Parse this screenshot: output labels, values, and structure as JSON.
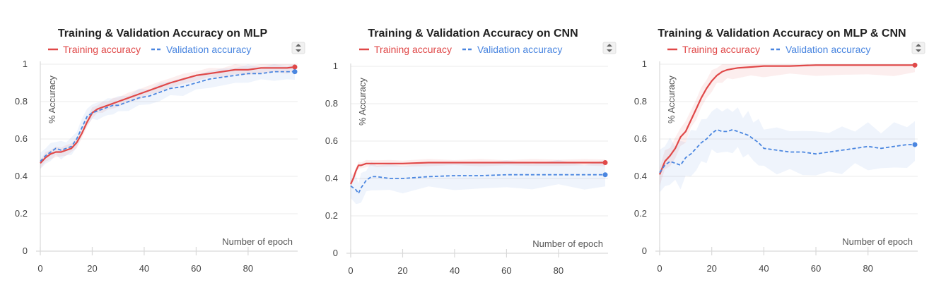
{
  "colors": {
    "training": "#e04848",
    "validation": "#4a86e0"
  },
  "chart_data": [
    {
      "type": "line",
      "title": "Training & Validation Accuracy on MLP",
      "xlabel": "Number of epoch",
      "ylabel": "% Accuracy",
      "xlim": [
        0,
        98
      ],
      "ylim": [
        0,
        1
      ],
      "x_ticks": [
        "0",
        "20",
        "40",
        "60",
        "80"
      ],
      "y_ticks": [
        "0",
        "0.2",
        "0.4",
        "0.6",
        "0.8",
        "1"
      ],
      "series": [
        {
          "name": "Training accuracy",
          "style": "solid",
          "x": [
            0,
            2,
            4,
            6,
            8,
            10,
            12,
            14,
            16,
            18,
            20,
            22,
            24,
            26,
            28,
            30,
            34,
            38,
            42,
            46,
            50,
            55,
            60,
            65,
            70,
            75,
            80,
            85,
            90,
            95,
            98
          ],
          "y": [
            0.47,
            0.5,
            0.52,
            0.53,
            0.53,
            0.54,
            0.55,
            0.58,
            0.63,
            0.69,
            0.74,
            0.76,
            0.77,
            0.78,
            0.79,
            0.8,
            0.82,
            0.84,
            0.86,
            0.88,
            0.9,
            0.92,
            0.94,
            0.95,
            0.96,
            0.97,
            0.97,
            0.98,
            0.98,
            0.98,
            0.985
          ]
        },
        {
          "name": "Validation accuracy",
          "style": "dashed",
          "x": [
            0,
            2,
            4,
            6,
            8,
            10,
            12,
            14,
            16,
            18,
            20,
            22,
            24,
            26,
            28,
            30,
            34,
            38,
            42,
            46,
            50,
            55,
            60,
            65,
            70,
            75,
            80,
            85,
            90,
            95,
            98
          ],
          "y": [
            0.48,
            0.51,
            0.53,
            0.55,
            0.54,
            0.55,
            0.56,
            0.6,
            0.66,
            0.72,
            0.74,
            0.75,
            0.76,
            0.77,
            0.78,
            0.78,
            0.8,
            0.82,
            0.83,
            0.85,
            0.87,
            0.88,
            0.9,
            0.92,
            0.93,
            0.94,
            0.95,
            0.95,
            0.96,
            0.96,
            0.96
          ]
        }
      ]
    },
    {
      "type": "line",
      "title": "Training & Validation Accuracy on CNN",
      "xlabel": "Number of epoch",
      "ylabel": "% Accuracy",
      "xlim": [
        0,
        98
      ],
      "ylim": [
        0,
        1
      ],
      "x_ticks": [
        "0",
        "20",
        "40",
        "60",
        "80"
      ],
      "y_ticks": [
        "0",
        "0.2",
        "0.4",
        "0.6",
        "0.8",
        "1"
      ],
      "series": [
        {
          "name": "Training accuracy",
          "style": "solid",
          "x": [
            0,
            1,
            2,
            3,
            4,
            6,
            8,
            10,
            15,
            20,
            30,
            40,
            50,
            60,
            70,
            80,
            90,
            98
          ],
          "y": [
            0.37,
            0.4,
            0.44,
            0.47,
            0.47,
            0.48,
            0.48,
            0.48,
            0.48,
            0.48,
            0.485,
            0.485,
            0.485,
            0.485,
            0.485,
            0.485,
            0.485,
            0.485
          ]
        },
        {
          "name": "Validation accuracy",
          "style": "dashed",
          "x": [
            0,
            1,
            2,
            3,
            4,
            6,
            8,
            10,
            15,
            20,
            30,
            40,
            50,
            60,
            70,
            80,
            90,
            98
          ],
          "y": [
            0.36,
            0.35,
            0.34,
            0.32,
            0.35,
            0.39,
            0.41,
            0.41,
            0.4,
            0.4,
            0.41,
            0.415,
            0.415,
            0.42,
            0.42,
            0.42,
            0.42,
            0.42
          ]
        }
      ]
    },
    {
      "type": "line",
      "title": "Training & Validation Accuracy on MLP & CNN",
      "xlabel": "Number of epoch",
      "ylabel": "% Accuracy",
      "xlim": [
        0,
        98
      ],
      "ylim": [
        0,
        1
      ],
      "x_ticks": [
        "0",
        "20",
        "40",
        "60",
        "80"
      ],
      "y_ticks": [
        "0",
        "0.2",
        "0.4",
        "0.6",
        "0.8",
        "1"
      ],
      "series": [
        {
          "name": "Training accuracy",
          "style": "solid",
          "x": [
            0,
            2,
            4,
            6,
            8,
            10,
            12,
            14,
            16,
            18,
            20,
            22,
            24,
            26,
            28,
            30,
            35,
            40,
            50,
            60,
            70,
            80,
            90,
            98
          ],
          "y": [
            0.41,
            0.48,
            0.51,
            0.55,
            0.61,
            0.64,
            0.7,
            0.76,
            0.82,
            0.87,
            0.91,
            0.94,
            0.96,
            0.97,
            0.975,
            0.98,
            0.985,
            0.99,
            0.99,
            0.995,
            0.995,
            0.995,
            0.995,
            0.995
          ]
        },
        {
          "name": "Validation accuracy",
          "style": "dashed",
          "x": [
            0,
            2,
            4,
            6,
            8,
            10,
            12,
            14,
            16,
            18,
            20,
            22,
            24,
            26,
            28,
            30,
            32,
            34,
            36,
            38,
            40,
            45,
            50,
            55,
            60,
            65,
            70,
            75,
            80,
            85,
            90,
            95,
            98
          ],
          "y": [
            0.42,
            0.46,
            0.48,
            0.47,
            0.46,
            0.5,
            0.52,
            0.55,
            0.58,
            0.6,
            0.63,
            0.65,
            0.64,
            0.64,
            0.65,
            0.64,
            0.63,
            0.62,
            0.6,
            0.58,
            0.55,
            0.54,
            0.53,
            0.53,
            0.52,
            0.53,
            0.54,
            0.55,
            0.56,
            0.55,
            0.56,
            0.57,
            0.57
          ]
        }
      ]
    }
  ]
}
